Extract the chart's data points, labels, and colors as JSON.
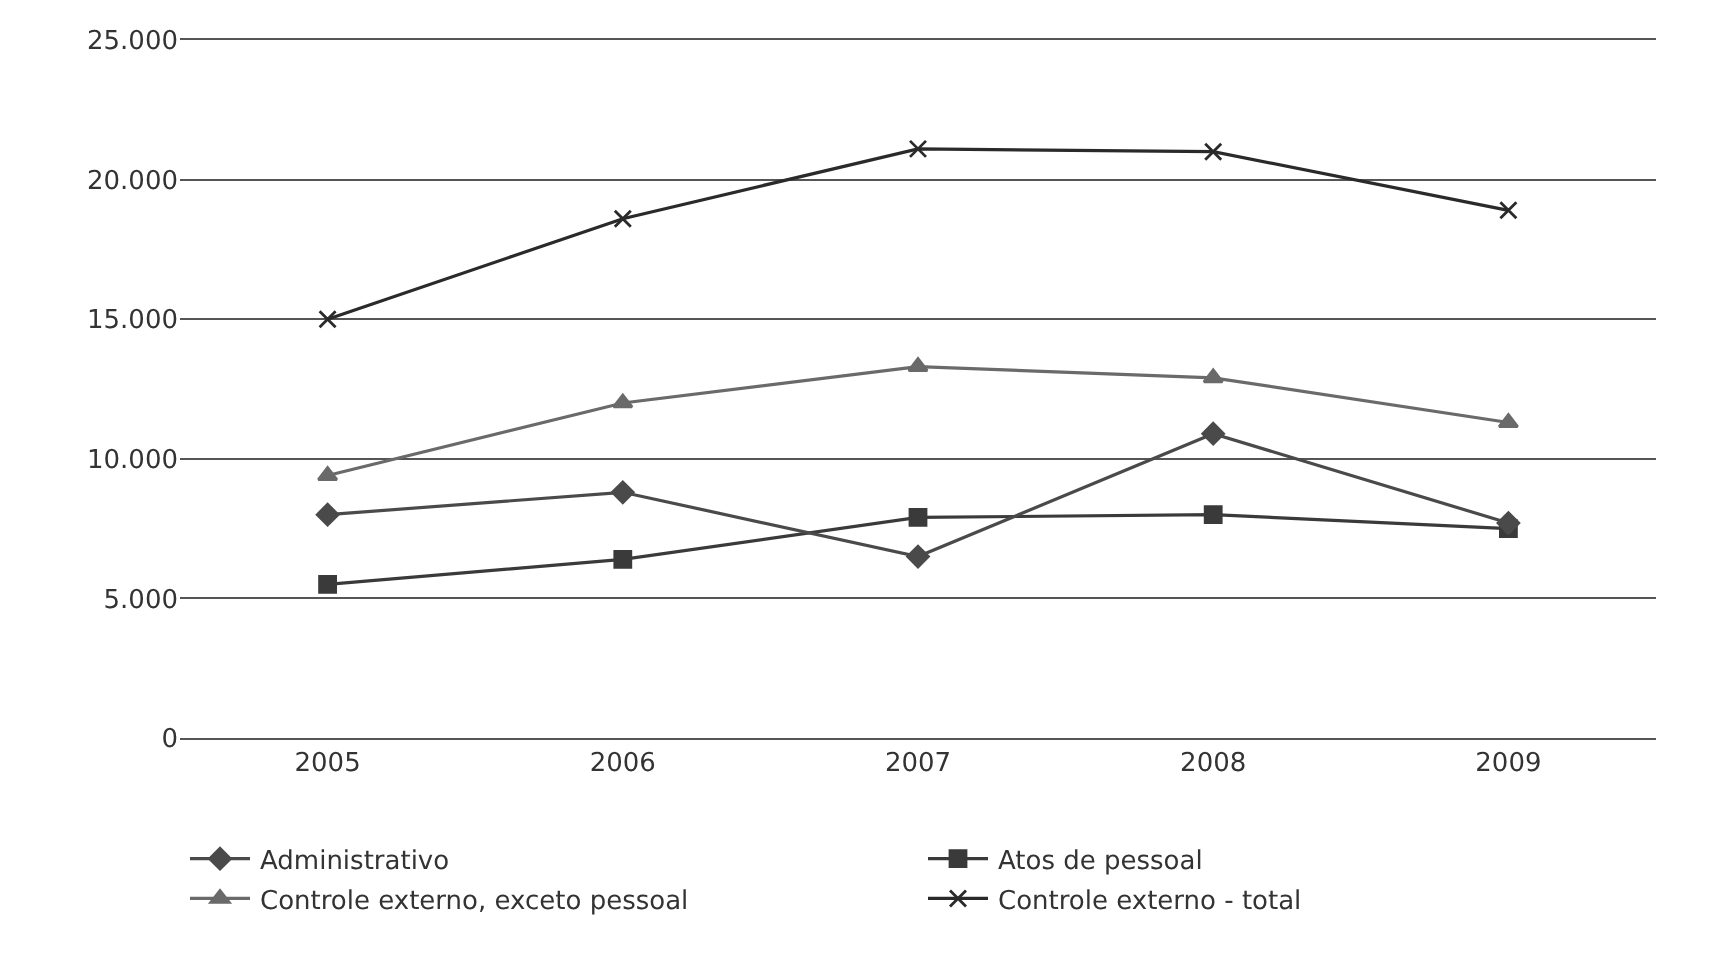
{
  "chart_data": {
    "type": "line",
    "categories": [
      "2005",
      "2006",
      "2007",
      "2008",
      "2009"
    ],
    "series": [
      {
        "name": "Administrativo",
        "color": "#4a4a4a",
        "marker": "diamond",
        "values": [
          8000,
          8800,
          6500,
          10900,
          7700
        ]
      },
      {
        "name": "Atos de pessoal",
        "color": "#3a3a3a",
        "marker": "square",
        "values": [
          5500,
          6400,
          7900,
          8000,
          7500
        ]
      },
      {
        "name": "Controle externo, exceto pessoal",
        "color": "#6a6a6a",
        "marker": "triangle",
        "values": [
          9400,
          12000,
          13300,
          12900,
          11300
        ]
      },
      {
        "name": "Controle externo - total",
        "color": "#2a2a2a",
        "marker": "cross",
        "values": [
          15000,
          18600,
          21100,
          21000,
          18900
        ]
      }
    ],
    "ylim": [
      0,
      25000
    ],
    "yticks": [
      {
        "value": 0,
        "label": "0"
      },
      {
        "value": 5000,
        "label": "5.000"
      },
      {
        "value": 10000,
        "label": "10.000"
      },
      {
        "value": 15000,
        "label": "15.000"
      },
      {
        "value": 20000,
        "label": "20.000"
      },
      {
        "value": 25000,
        "label": "25.000"
      }
    ],
    "grid": "y",
    "legend": "bottom"
  }
}
